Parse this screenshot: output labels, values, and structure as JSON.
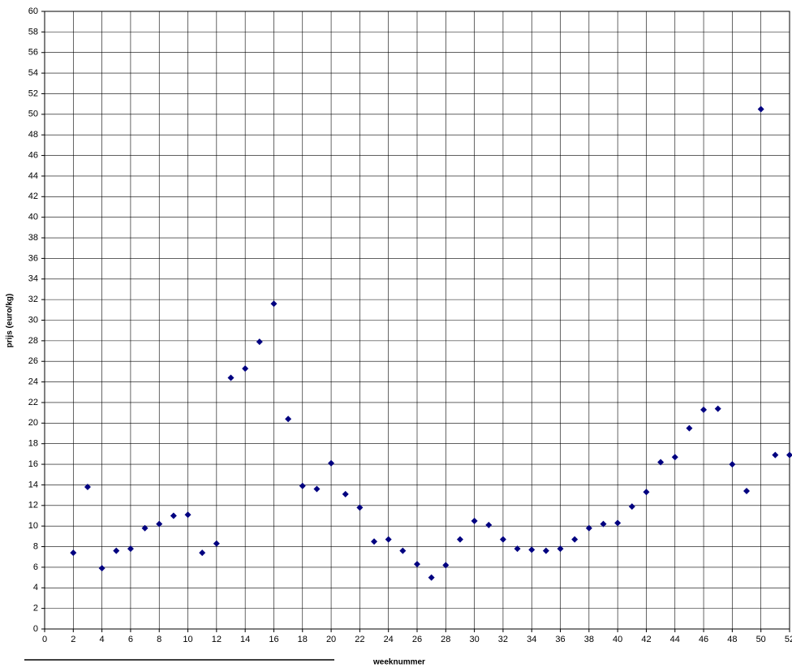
{
  "chart_data": {
    "type": "scatter",
    "x_label": "weeknummer",
    "y_label": "prijs (euro/kg)",
    "x": [
      2,
      3,
      4,
      5,
      6,
      7,
      8,
      9,
      10,
      11,
      12,
      13,
      14,
      15,
      16,
      17,
      18,
      19,
      20,
      21,
      22,
      23,
      24,
      25,
      26,
      27,
      28,
      29,
      30,
      31,
      32,
      33,
      34,
      35,
      36,
      37,
      38,
      39,
      40,
      41,
      42,
      43,
      44,
      45,
      46,
      47,
      48,
      49,
      50,
      51,
      52
    ],
    "values": [
      7.4,
      13.8,
      5.9,
      7.6,
      7.8,
      9.8,
      10.2,
      11.0,
      11.1,
      7.4,
      8.3,
      24.4,
      25.3,
      27.9,
      31.6,
      20.4,
      13.9,
      13.6,
      16.1,
      13.1,
      11.8,
      8.5,
      8.7,
      7.6,
      6.3,
      5.0,
      6.2,
      8.7,
      10.5,
      10.1,
      8.7,
      7.8,
      7.7,
      7.6,
      7.8,
      8.7,
      9.8,
      10.2,
      10.3,
      11.9,
      13.3,
      16.2,
      16.7,
      19.5,
      21.3,
      21.4,
      16.0,
      13.4,
      50.5,
      16.9,
      16.9
    ],
    "color": "#000080",
    "xlim": [
      0,
      52
    ],
    "xticks": [
      0,
      2,
      4,
      6,
      8,
      10,
      12,
      14,
      16,
      18,
      20,
      22,
      24,
      26,
      28,
      30,
      32,
      34,
      36,
      38,
      40,
      42,
      44,
      46,
      48,
      50,
      52
    ],
    "ylim": [
      0,
      60
    ],
    "yticks": [
      0,
      2,
      4,
      6,
      8,
      10,
      12,
      14,
      16,
      18,
      20,
      22,
      24,
      26,
      28,
      30,
      32,
      34,
      36,
      38,
      40,
      42,
      44,
      46,
      48,
      50,
      52,
      54,
      56,
      58,
      60
    ],
    "grid": true
  }
}
